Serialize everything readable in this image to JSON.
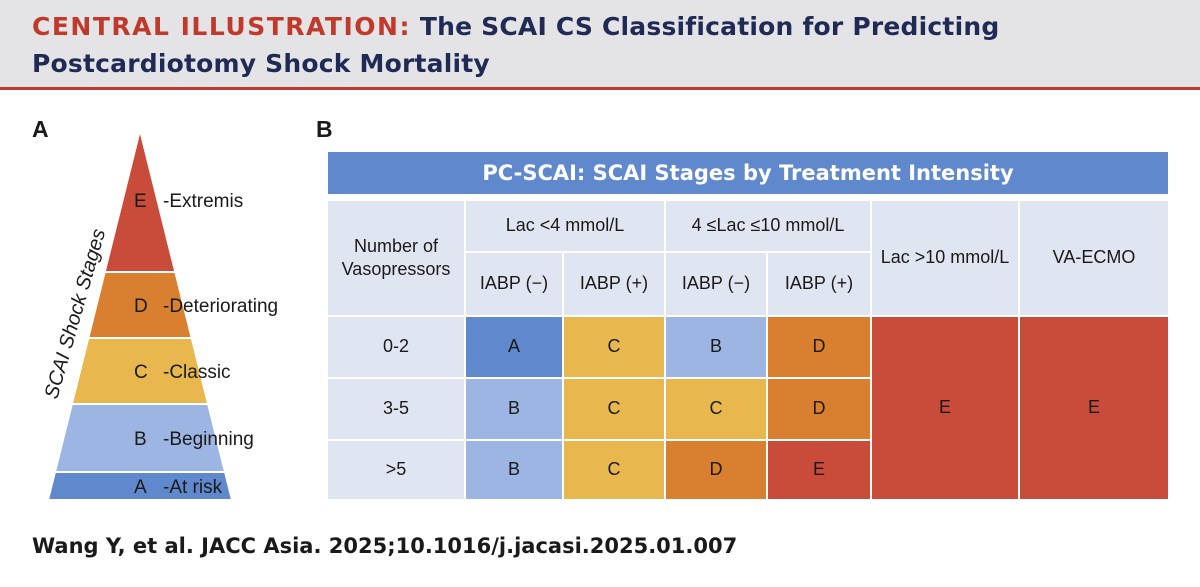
{
  "header": {
    "tag": "CENTRAL ILLUSTRATION:",
    "title_line1": "The SCAI CS Classification for Predicting",
    "title_line2": "Postcardiotomy Shock Mortality"
  },
  "panel_a": {
    "label": "A",
    "axis_label": "SCAI Shock Stages",
    "stages": [
      {
        "letter": "E",
        "name": "-Extremis",
        "color": "#c94c3a"
      },
      {
        "letter": "D",
        "name": "-Deteriorating",
        "color": "#d97f30"
      },
      {
        "letter": "C",
        "name": "-Classic",
        "color": "#e8b84f"
      },
      {
        "letter": "B",
        "name": "-Beginning",
        "color": "#9db5e2"
      },
      {
        "letter": "A",
        "name": "-At risk",
        "color": "#5f89cc"
      }
    ]
  },
  "panel_b": {
    "label": "B",
    "title": "PC-SCAI: SCAI Stages by Treatment Intensity",
    "row_header": "Number of Vasopressors",
    "group_lac_low": "Lac <4 mmol/L",
    "group_lac_mid": "4 ≤Lac ≤10 mmol/L",
    "col_lac_high": "Lac >10 mmol/L",
    "col_ecmo": "VA-ECMO",
    "sub_iabp_neg": "IABP (−)",
    "sub_iabp_pos": "IABP (+)",
    "rows": [
      {
        "label": "0-2",
        "cells": [
          "A",
          "C",
          "B",
          "D"
        ]
      },
      {
        "label": "3-5",
        "cells": [
          "B",
          "C",
          "C",
          "D"
        ]
      },
      {
        "label": ">5",
        "cells": [
          "B",
          "C",
          "D",
          "E"
        ]
      }
    ],
    "lac_high_stage": "E",
    "ecmo_stage": "E"
  },
  "citation": "Wang Y, et al. JACC Asia. 2025;10.1016/j.jacasi.2025.01.007"
}
